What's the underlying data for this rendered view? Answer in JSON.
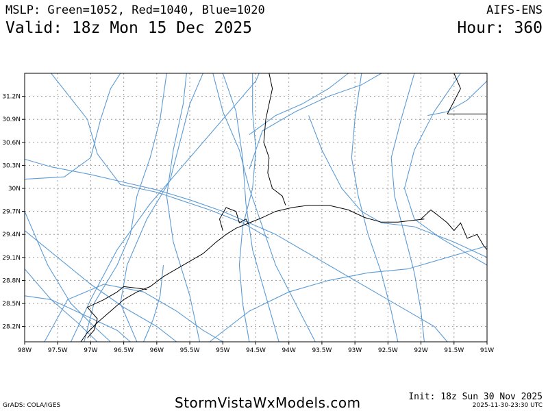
{
  "header": {
    "left_line1": "MSLP: Green=1052, Red=1040, Blue=1020",
    "left_line2": "Valid: 18z Mon 15 Dec 2025",
    "right_line1": "AIFS-ENS",
    "right_line2": "Hour: 360"
  },
  "map": {
    "lon_range": [
      -98,
      -91
    ],
    "lat_range": [
      28.0,
      31.5
    ],
    "lon_ticks": [
      {
        "value": -98,
        "label": "98W"
      },
      {
        "value": -97.5,
        "label": "97.5W"
      },
      {
        "value": -97,
        "label": "97W"
      },
      {
        "value": -96.5,
        "label": "96.5W"
      },
      {
        "value": -96,
        "label": "96W"
      },
      {
        "value": -95.5,
        "label": "95.5W"
      },
      {
        "value": -95,
        "label": "95W"
      },
      {
        "value": -94.5,
        "label": "94.5W"
      },
      {
        "value": -94,
        "label": "94W"
      },
      {
        "value": -93.5,
        "label": "93.5W"
      },
      {
        "value": -93,
        "label": "93W"
      },
      {
        "value": -92.5,
        "label": "92.5W"
      },
      {
        "value": -92,
        "label": "92W"
      },
      {
        "value": -91.5,
        "label": "91.5W"
      },
      {
        "value": -91,
        "label": "91W"
      }
    ],
    "lat_ticks": [
      {
        "value": 28.2,
        "label": "28.2N"
      },
      {
        "value": 28.5,
        "label": "28.5N"
      },
      {
        "value": 28.8,
        "label": "28.8N"
      },
      {
        "value": 29.1,
        "label": "29.1N"
      },
      {
        "value": 29.4,
        "label": "29.4N"
      },
      {
        "value": 29.7,
        "label": "29.7N"
      },
      {
        "value": 30.0,
        "label": "30N"
      },
      {
        "value": 30.3,
        "label": "30.3N"
      },
      {
        "value": 30.6,
        "label": "30.6N"
      },
      {
        "value": 30.9,
        "label": "30.9N"
      },
      {
        "value": 31.2,
        "label": "31.2N"
      }
    ],
    "isobar_color": "#5b9bd5",
    "coast_color": "#000000",
    "isobars": [
      [
        [
          -98,
          30.38
        ],
        [
          -97.6,
          30.28
        ],
        [
          -97.0,
          30.18
        ],
        [
          -96.5,
          30.08
        ],
        [
          -96.0,
          29.98
        ],
        [
          -95.5,
          29.85
        ],
        [
          -95.0,
          29.7
        ],
        [
          -94.6,
          29.55
        ],
        [
          -94.2,
          29.4
        ],
        [
          -93.8,
          29.2
        ],
        [
          -93.4,
          29.0
        ],
        [
          -93.0,
          28.8
        ],
        [
          -92.6,
          28.6
        ],
        [
          -92.2,
          28.4
        ],
        [
          -91.8,
          28.2
        ],
        [
          -91.6,
          28.0
        ]
      ],
      [
        [
          -97.3,
          28.0
        ],
        [
          -97.0,
          28.55
        ],
        [
          -96.6,
          29.2
        ],
        [
          -96.1,
          29.8
        ],
        [
          -95.6,
          30.3
        ],
        [
          -95.2,
          30.7
        ],
        [
          -94.8,
          31.1
        ],
        [
          -94.5,
          31.4
        ],
        [
          -94.45,
          31.5
        ]
      ],
      [
        [
          -96.3,
          28.0
        ],
        [
          -96.55,
          28.5
        ],
        [
          -96.45,
          29.0
        ],
        [
          -96.15,
          29.6
        ],
        [
          -95.8,
          30.1
        ],
        [
          -95.65,
          30.6
        ],
        [
          -95.5,
          31.1
        ],
        [
          -95.3,
          31.5
        ]
      ],
      [
        [
          -95.35,
          28.0
        ],
        [
          -95.5,
          28.6
        ],
        [
          -95.75,
          29.3
        ],
        [
          -95.85,
          29.9
        ],
        [
          -95.75,
          30.5
        ],
        [
          -95.6,
          31.1
        ],
        [
          -95.55,
          31.5
        ]
      ],
      [
        [
          -98,
          30.12
        ],
        [
          -97.4,
          30.15
        ],
        [
          -97.0,
          30.4
        ],
        [
          -96.85,
          30.9
        ],
        [
          -96.7,
          31.3
        ],
        [
          -96.55,
          31.5
        ]
      ],
      [
        [
          -97.6,
          31.5
        ],
        [
          -97.05,
          30.9
        ],
        [
          -96.9,
          30.45
        ],
        [
          -96.55,
          30.05
        ],
        [
          -96.0,
          29.95
        ],
        [
          -95.2,
          29.72
        ],
        [
          -94.7,
          29.55
        ],
        [
          -94.3,
          29.35
        ]
      ],
      [
        [
          -94.15,
          28.0
        ],
        [
          -94.35,
          28.6
        ],
        [
          -94.55,
          29.2
        ],
        [
          -94.65,
          29.8
        ],
        [
          -94.7,
          30.4
        ],
        [
          -94.8,
          31.0
        ],
        [
          -95.0,
          31.5
        ]
      ],
      [
        [
          -94.6,
          28.0
        ],
        [
          -94.7,
          28.5
        ],
        [
          -94.75,
          29.0
        ],
        [
          -94.7,
          29.5
        ],
        [
          -94.55,
          30.0
        ],
        [
          -94.5,
          30.5
        ],
        [
          -94.55,
          31.0
        ],
        [
          -94.55,
          31.5
        ]
      ],
      [
        [
          -92.9,
          31.5
        ],
        [
          -93.0,
          30.9
        ],
        [
          -93.05,
          30.4
        ],
        [
          -92.95,
          29.9
        ],
        [
          -92.8,
          29.4
        ],
        [
          -92.6,
          28.9
        ],
        [
          -92.45,
          28.4
        ],
        [
          -92.35,
          28.0
        ]
      ],
      [
        [
          -92.1,
          31.5
        ],
        [
          -92.3,
          30.9
        ],
        [
          -92.45,
          30.4
        ],
        [
          -92.4,
          29.9
        ],
        [
          -92.25,
          29.4
        ],
        [
          -92.1,
          28.9
        ],
        [
          -92.0,
          28.4
        ],
        [
          -91.95,
          28.0
        ]
      ],
      [
        [
          -91.4,
          31.5
        ],
        [
          -91.8,
          31.0
        ],
        [
          -92.1,
          30.5
        ],
        [
          -92.25,
          30.0
        ],
        [
          -92.1,
          29.6
        ],
        [
          -91.7,
          29.35
        ],
        [
          -91.2,
          29.1
        ],
        [
          -91.0,
          29.0
        ]
      ],
      [
        [
          -94.6,
          30.7
        ],
        [
          -94.2,
          30.95
        ],
        [
          -93.8,
          31.1
        ],
        [
          -93.4,
          31.3
        ],
        [
          -93.1,
          31.5
        ]
      ],
      [
        [
          -94.6,
          30.25
        ],
        [
          -94.4,
          30.75
        ],
        [
          -93.9,
          31.0
        ],
        [
          -93.4,
          31.2
        ],
        [
          -92.9,
          31.35
        ],
        [
          -92.6,
          31.5
        ]
      ],
      [
        [
          -91.0,
          31.4
        ],
        [
          -91.3,
          31.15
        ],
        [
          -91.6,
          31.0
        ],
        [
          -91.9,
          30.95
        ]
      ],
      [
        [
          -98,
          28.6
        ],
        [
          -97.6,
          28.55
        ],
        [
          -97.1,
          28.35
        ],
        [
          -96.6,
          28.15
        ],
        [
          -96.4,
          28.0
        ]
      ],
      [
        [
          -97.7,
          28.0
        ],
        [
          -97.35,
          28.55
        ],
        [
          -96.8,
          28.75
        ],
        [
          -96.2,
          28.65
        ],
        [
          -95.7,
          28.4
        ],
        [
          -95.3,
          28.15
        ],
        [
          -95.0,
          28.0
        ]
      ],
      [
        [
          -98,
          29.7
        ],
        [
          -97.65,
          29.0
        ],
        [
          -97.3,
          28.5
        ],
        [
          -96.95,
          28.2
        ],
        [
          -96.7,
          28.0
        ]
      ],
      [
        [
          -95.2,
          28.0
        ],
        [
          -94.6,
          28.4
        ],
        [
          -94.0,
          28.65
        ],
        [
          -93.4,
          28.8
        ],
        [
          -92.8,
          28.9
        ],
        [
          -92.2,
          28.95
        ],
        [
          -91.6,
          29.1
        ],
        [
          -91.0,
          29.25
        ]
      ],
      [
        [
          -93.6,
          28.0
        ],
        [
          -93.9,
          28.5
        ],
        [
          -94.2,
          29.0
        ],
        [
          -94.4,
          29.5
        ],
        [
          -94.6,
          30.0
        ],
        [
          -94.75,
          30.5
        ],
        [
          -95.0,
          31.0
        ],
        [
          -95.15,
          31.5
        ]
      ],
      [
        [
          -93.7,
          30.95
        ],
        [
          -93.5,
          30.5
        ],
        [
          -93.2,
          30.0
        ],
        [
          -92.9,
          29.7
        ],
        [
          -92.6,
          29.55
        ],
        [
          -92.1,
          29.5
        ],
        [
          -91.5,
          29.3
        ],
        [
          -91.0,
          29.1
        ]
      ],
      [
        [
          -97.1,
          28.0
        ],
        [
          -96.95,
          28.5
        ],
        [
          -96.6,
          29.0
        ],
        [
          -96.4,
          29.4
        ],
        [
          -96.3,
          29.9
        ],
        [
          -96.1,
          30.4
        ],
        [
          -95.95,
          30.9
        ],
        [
          -95.85,
          31.5
        ]
      ],
      [
        [
          -98,
          28.95
        ],
        [
          -97.6,
          28.55
        ],
        [
          -97.2,
          28.25
        ],
        [
          -96.9,
          28.0
        ]
      ],
      [
        [
          -96.2,
          28.0
        ],
        [
          -96.05,
          28.3
        ],
        [
          -95.95,
          28.6
        ],
        [
          -95.9,
          29.0
        ]
      ],
      [
        [
          -98,
          29.45
        ],
        [
          -97.5,
          29.1
        ],
        [
          -97.0,
          28.75
        ],
        [
          -96.5,
          28.45
        ],
        [
          -96.0,
          28.2
        ],
        [
          -95.7,
          28.0
        ]
      ]
    ],
    "coastline": [
      [
        [
          -97.15,
          28.0
        ],
        [
          -97.05,
          28.12
        ],
        [
          -96.9,
          28.25
        ],
        [
          -96.7,
          28.4
        ],
        [
          -96.5,
          28.55
        ],
        [
          -96.3,
          28.65
        ],
        [
          -96.1,
          28.72
        ],
        [
          -95.9,
          28.85
        ],
        [
          -95.7,
          28.95
        ],
        [
          -95.5,
          29.05
        ],
        [
          -95.3,
          29.15
        ],
        [
          -95.1,
          29.3
        ],
        [
          -94.95,
          29.4
        ],
        [
          -94.8,
          29.48
        ],
        [
          -94.6,
          29.55
        ],
        [
          -94.4,
          29.62
        ],
        [
          -94.2,
          29.7
        ],
        [
          -93.95,
          29.75
        ],
        [
          -93.7,
          29.78
        ],
        [
          -93.4,
          29.78
        ],
        [
          -93.1,
          29.72
        ],
        [
          -92.85,
          29.62
        ],
        [
          -92.6,
          29.56
        ],
        [
          -92.35,
          29.56
        ],
        [
          -92.15,
          29.58
        ],
        [
          -91.95,
          29.6
        ]
      ],
      [
        [
          -97.05,
          28.05
        ],
        [
          -96.95,
          28.15
        ],
        [
          -96.9,
          28.3
        ],
        [
          -97.05,
          28.45
        ],
        [
          -96.8,
          28.55
        ],
        [
          -96.6,
          28.65
        ],
        [
          -96.5,
          28.72
        ],
        [
          -96.3,
          28.7
        ],
        [
          -96.15,
          28.68
        ]
      ],
      [
        [
          -95.0,
          29.45
        ],
        [
          -95.05,
          29.6
        ],
        [
          -94.95,
          29.75
        ],
        [
          -94.8,
          29.7
        ],
        [
          -94.75,
          29.55
        ],
        [
          -94.65,
          29.6
        ],
        [
          -94.6,
          29.52
        ]
      ],
      [
        [
          -94.3,
          31.5
        ],
        [
          -94.25,
          31.3
        ],
        [
          -94.3,
          31.1
        ],
        [
          -94.35,
          30.9
        ],
        [
          -94.38,
          30.6
        ],
        [
          -94.3,
          30.4
        ],
        [
          -94.32,
          30.2
        ],
        [
          -94.25,
          30.0
        ],
        [
          -94.1,
          29.9
        ],
        [
          -94.05,
          29.78
        ]
      ],
      [
        [
          -92.0,
          29.6
        ],
        [
          -91.85,
          29.72
        ],
        [
          -91.7,
          29.62
        ],
        [
          -91.6,
          29.55
        ],
        [
          -91.5,
          29.45
        ],
        [
          -91.4,
          29.55
        ],
        [
          -91.3,
          29.35
        ],
        [
          -91.15,
          29.4
        ],
        [
          -91.05,
          29.25
        ],
        [
          -91.0,
          29.2
        ]
      ],
      [
        [
          -91.6,
          30.97
        ],
        [
          -91.4,
          31.3
        ],
        [
          -91.5,
          31.5
        ]
      ],
      [
        [
          -91.6,
          30.97
        ],
        [
          -91.0,
          30.97
        ]
      ]
    ]
  },
  "footer": {
    "grads": "GrADS: COLA/IGES",
    "site": "StormVistaWxModels.com",
    "init": "Init: 18z Sun 30 Nov 2025",
    "stamp": "2025-11-30-23:30 UTC"
  }
}
